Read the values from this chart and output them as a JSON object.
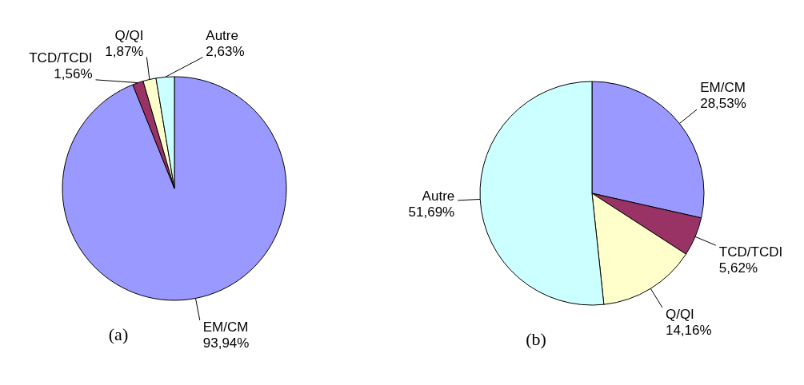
{
  "chart_data": [
    {
      "type": "pie",
      "title": "(a)",
      "categories": [
        "EM/CM",
        "TCD/TCDI",
        "Q/QI",
        "Autre"
      ],
      "values": [
        93.94,
        1.56,
        1.87,
        2.63
      ],
      "colors": [
        "#9999ff",
        "#993366",
        "#ffffcc",
        "#ccffff"
      ],
      "value_labels": [
        "93,94%",
        "1,56%",
        "1,87%",
        "2,63%"
      ]
    },
    {
      "type": "pie",
      "title": "(b)",
      "categories": [
        "EM/CM",
        "TCD/TCDI",
        "Q/QI",
        "Autre"
      ],
      "values": [
        28.53,
        5.62,
        14.16,
        51.69
      ],
      "colors": [
        "#9999ff",
        "#993366",
        "#ffffcc",
        "#ccffff"
      ],
      "value_labels": [
        "28,53%",
        "5,62%",
        "14,16%",
        "51,69%"
      ]
    }
  ]
}
